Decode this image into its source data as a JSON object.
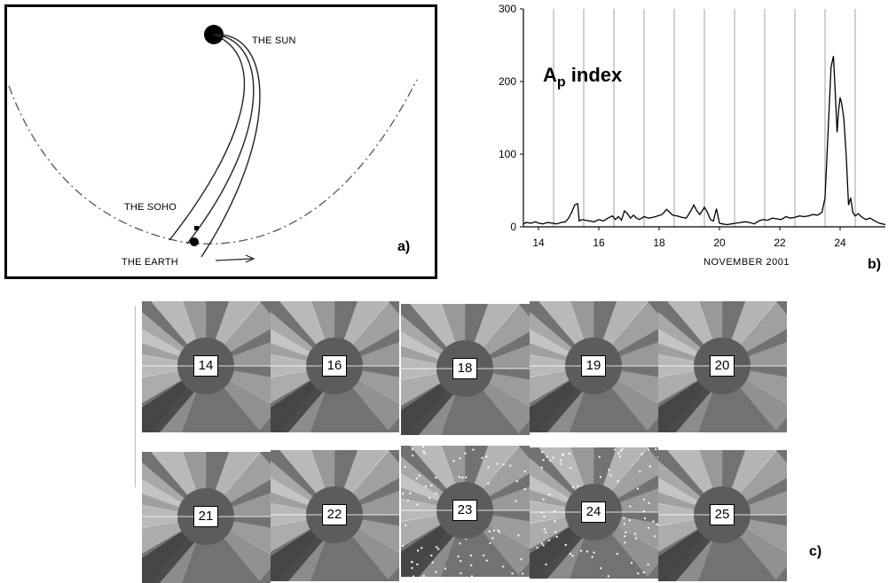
{
  "panel_a": {
    "label": "a)",
    "sun": "THE SUN",
    "soho": "THE SOHO",
    "earth": "THE EARTH"
  },
  "panel_b": {
    "label": "b)",
    "title_main": "A",
    "title_sub": "p",
    "title_rest": " index",
    "xlabel": "NOVEMBER  2001"
  },
  "panel_c": {
    "label": "c)",
    "images": [
      {
        "day": "14"
      },
      {
        "day": "16"
      },
      {
        "day": "18"
      },
      {
        "day": "19"
      },
      {
        "day": "20"
      },
      {
        "day": "21"
      },
      {
        "day": "22"
      },
      {
        "day": "23"
      },
      {
        "day": "24"
      },
      {
        "day": "25"
      }
    ]
  },
  "chart_data": {
    "type": "line",
    "title": "Ap index",
    "xlabel": "NOVEMBER  2001",
    "ylabel": "",
    "xlim": [
      13.5,
      25.5
    ],
    "ylim": [
      0,
      300
    ],
    "xticks": [
      14,
      16,
      18,
      20,
      22,
      24
    ],
    "yticks": [
      0,
      100,
      200,
      300
    ],
    "vertical_gridlines": [
      14.5,
      15.5,
      16.5,
      17.5,
      18.5,
      19.5,
      20.5,
      21.5,
      22.5,
      23.5,
      24.5
    ],
    "series": [
      {
        "x": [
          13.5,
          13.6,
          13.75,
          13.9,
          14.0,
          14.15,
          14.3,
          14.45,
          14.6,
          14.75,
          14.9,
          15.0,
          15.1,
          15.2,
          15.3,
          15.35,
          15.45,
          15.55,
          15.7,
          15.85,
          16.0,
          16.15,
          16.3,
          16.45,
          16.55,
          16.65,
          16.75,
          16.85,
          16.95,
          17.05,
          17.15,
          17.25,
          17.35,
          17.5,
          17.65,
          17.8,
          17.95,
          18.1,
          18.25,
          18.35,
          18.45,
          18.6,
          18.75,
          18.9,
          19.05,
          19.15,
          19.25,
          19.35,
          19.5,
          19.6,
          19.7,
          19.8,
          19.9,
          20.0,
          20.1,
          20.25,
          20.4,
          20.55,
          20.7,
          20.85,
          21.0,
          21.15,
          21.3,
          21.45,
          21.6,
          21.75,
          21.9,
          22.05,
          22.2,
          22.35,
          22.5,
          22.65,
          22.8,
          22.95,
          23.1,
          23.25,
          23.4,
          23.5,
          23.6,
          23.7,
          23.78,
          23.85,
          23.9,
          23.95,
          24.0,
          24.05,
          24.12,
          24.2,
          24.28,
          24.35,
          24.42,
          24.5,
          24.6,
          24.7,
          24.85,
          25.0,
          25.15,
          25.3,
          25.5
        ],
        "y": [
          4,
          6,
          5,
          7,
          5,
          4,
          6,
          5,
          4,
          6,
          7,
          12,
          20,
          30,
          32,
          8,
          10,
          9,
          8,
          7,
          10,
          8,
          12,
          15,
          10,
          14,
          9,
          22,
          18,
          12,
          16,
          12,
          10,
          14,
          12,
          13,
          15,
          17,
          24,
          20,
          16,
          15,
          13,
          12,
          22,
          30,
          22,
          17,
          27,
          20,
          10,
          8,
          25,
          5,
          4,
          3,
          4,
          5,
          6,
          7,
          6,
          4,
          8,
          10,
          9,
          12,
          11,
          10,
          14,
          12,
          13,
          15,
          14,
          15,
          17,
          16,
          20,
          40,
          130,
          220,
          235,
          175,
          130,
          160,
          178,
          170,
          150,
          100,
          30,
          40,
          20,
          15,
          18,
          14,
          10,
          12,
          8,
          5,
          3
        ]
      }
    ]
  }
}
